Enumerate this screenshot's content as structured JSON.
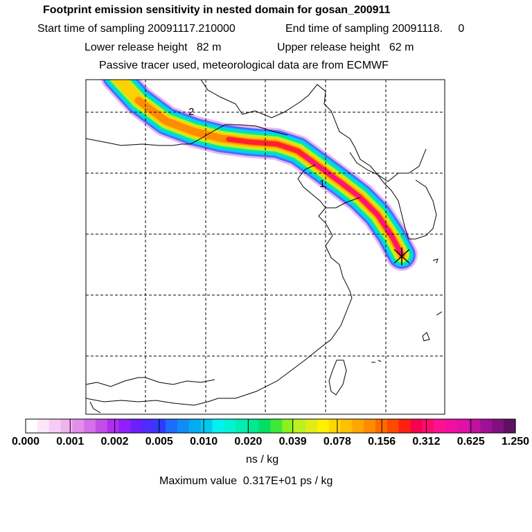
{
  "header": {
    "title": "Footprint emission sensitivity in nested domain for gosan_200911",
    "start_label": "Start time of sampling 20091117.210000",
    "end_label": "End time of sampling 20091118.     0",
    "lower_label": "Lower release height   82 m",
    "upper_label": "Upper release height   62 m",
    "tracer_label": "Passive tracer used, meteorological data are from ECMWF"
  },
  "map": {
    "trajectory_labels": [
      "2",
      "1"
    ],
    "plume_path": "from northwest over Mongolia/Inner Mongolia, through Bohai region, across Shandong/Yellow Sea to receptor at Gosan, Jeju",
    "receptor": "Gosan"
  },
  "colorbar": {
    "tick_labels": [
      "0.000",
      "0.001",
      "0.002",
      "0.005",
      "0.010",
      "0.020",
      "0.039",
      "0.078",
      "0.156",
      "0.312",
      "0.625",
      "1.250"
    ],
    "colors": [
      "#ffffff",
      "#fbe6fb",
      "#f6ccf6",
      "#f0b2f0",
      "#e28fec",
      "#d66fea",
      "#c44de8",
      "#b02cf0",
      "#8f1fff",
      "#6a1fff",
      "#4c2cff",
      "#2f3cff",
      "#1e6cff",
      "#108cf5",
      "#05aaf0",
      "#00c8f0",
      "#00f2ee",
      "#00f4d4",
      "#00eeb0",
      "#00e890",
      "#00e060",
      "#3ee838",
      "#8cf01c",
      "#bef020",
      "#e2ec14",
      "#fff000",
      "#ffd800",
      "#ffc000",
      "#ffa600",
      "#ff8c00",
      "#ff6a00",
      "#ff4800",
      "#ff2010",
      "#f80050",
      "#ff0a70",
      "#ff1090",
      "#f010a0",
      "#e010a8",
      "#c010a0",
      "#a00f98",
      "#800f80",
      "#601060"
    ],
    "unit": "ns / kg",
    "max_value_label": "Maximum value  0.317E+01 ps / kg"
  }
}
